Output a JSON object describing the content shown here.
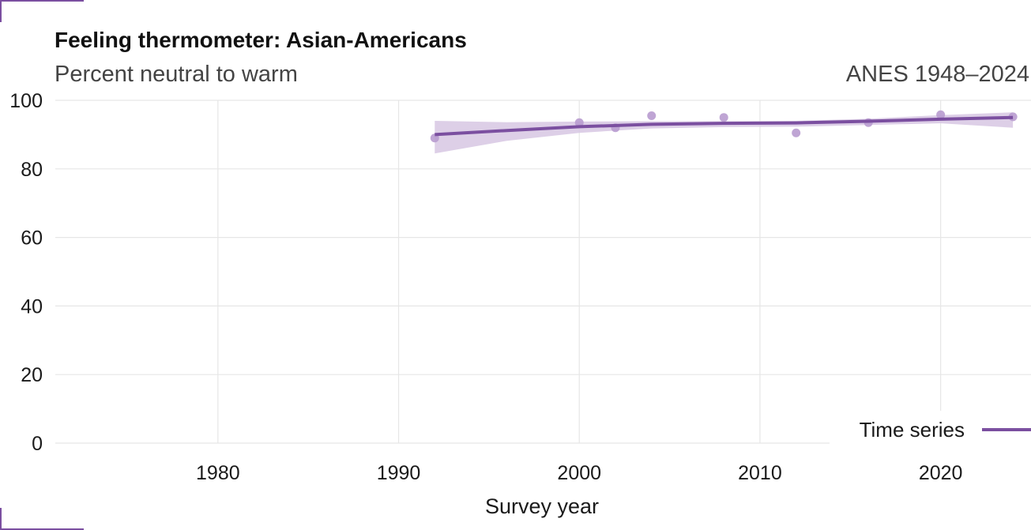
{
  "header": {
    "title": "Feeling thermometer: Asian-Americans",
    "subtitle": "Percent neutral to warm",
    "source": "ANES 1948–2024"
  },
  "chart_data": {
    "type": "scatter",
    "title": "Feeling thermometer: Asian-Americans",
    "subtitle": "Percent neutral to warm",
    "xlabel": "Survey year",
    "ylabel": "",
    "xlim": [
      1971,
      2025
    ],
    "ylim": [
      0,
      100
    ],
    "x_ticks": [
      1980,
      1990,
      2000,
      2010,
      2020
    ],
    "y_ticks": [
      0,
      20,
      40,
      60,
      80,
      100
    ],
    "grid": true,
    "legend_position": "bottom-right",
    "points": [
      {
        "x": 1992,
        "y": 89
      },
      {
        "x": 2000,
        "y": 93.5
      },
      {
        "x": 2002,
        "y": 92
      },
      {
        "x": 2004,
        "y": 95.5
      },
      {
        "x": 2008,
        "y": 95
      },
      {
        "x": 2012,
        "y": 90.5
      },
      {
        "x": 2016,
        "y": 93.5
      },
      {
        "x": 2020,
        "y": 95.8
      },
      {
        "x": 2024,
        "y": 95.2
      }
    ],
    "trend": {
      "name": "Time series",
      "x": [
        1992,
        1996,
        2000,
        2004,
        2008,
        2012,
        2016,
        2020,
        2024
      ],
      "y": [
        90.0,
        91.2,
        92.3,
        93.0,
        93.3,
        93.4,
        93.9,
        94.5,
        95.0
      ],
      "lower": [
        84.5,
        88.2,
        90.5,
        91.8,
        92.2,
        92.3,
        92.8,
        93.3,
        92.0
      ],
      "upper": [
        94.0,
        93.6,
        93.8,
        93.9,
        93.9,
        94.0,
        94.6,
        95.7,
        96.5
      ]
    },
    "colors": {
      "line": "#7b4fa0",
      "band": "#d7c7e3",
      "points": "#b89bcf",
      "grid": "#e6e6e6",
      "accent": "#7b4fa0"
    }
  }
}
